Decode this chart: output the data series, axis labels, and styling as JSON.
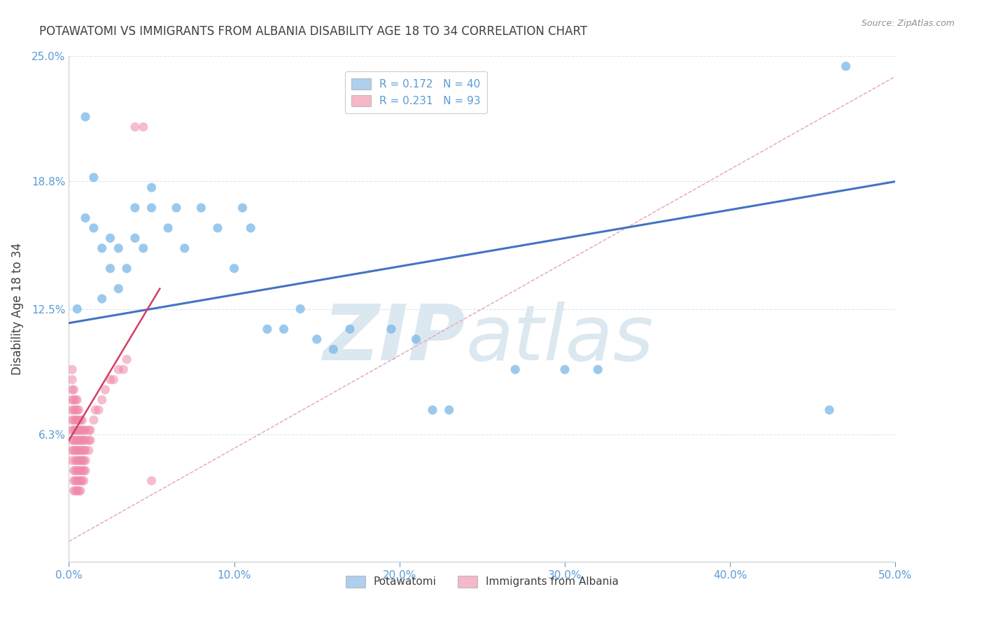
{
  "title": "POTAWATOMI VS IMMIGRANTS FROM ALBANIA DISABILITY AGE 18 TO 34 CORRELATION CHART",
  "source": "Source: ZipAtlas.com",
  "ylabel": "Disability Age 18 to 34",
  "xlim": [
    0,
    0.5
  ],
  "ylim": [
    0,
    0.25
  ],
  "xticks": [
    0.0,
    0.1,
    0.2,
    0.3,
    0.4,
    0.5
  ],
  "xticklabels": [
    "0.0%",
    "10.0%",
    "20.0%",
    "30.0%",
    "40.0%",
    "50.0%"
  ],
  "yticks": [
    0.0,
    0.063,
    0.125,
    0.188,
    0.25
  ],
  "yticklabels": [
    "",
    "6.3%",
    "12.5%",
    "18.8%",
    "25.0%"
  ],
  "legend_entries": [
    {
      "label": "R = 0.172   N = 40",
      "color": "#aecfee"
    },
    {
      "label": "R = 0.231   N = 93",
      "color": "#f5b8c8"
    }
  ],
  "bottom_legend": [
    {
      "label": "Potawatomi",
      "color": "#aecfee"
    },
    {
      "label": "Immigrants from Albania",
      "color": "#f5b8c8"
    }
  ],
  "blue_scatter": {
    "x": [
      0.005,
      0.01,
      0.01,
      0.015,
      0.015,
      0.02,
      0.02,
      0.025,
      0.025,
      0.03,
      0.03,
      0.035,
      0.04,
      0.04,
      0.045,
      0.05,
      0.05,
      0.06,
      0.065,
      0.07,
      0.08,
      0.09,
      0.1,
      0.105,
      0.11,
      0.12,
      0.13,
      0.14,
      0.15,
      0.16,
      0.17,
      0.195,
      0.21,
      0.22,
      0.23,
      0.27,
      0.3,
      0.32,
      0.46,
      0.47
    ],
    "y": [
      0.125,
      0.22,
      0.17,
      0.19,
      0.165,
      0.155,
      0.13,
      0.16,
      0.145,
      0.155,
      0.135,
      0.145,
      0.16,
      0.175,
      0.155,
      0.175,
      0.185,
      0.165,
      0.175,
      0.155,
      0.175,
      0.165,
      0.145,
      0.175,
      0.165,
      0.115,
      0.115,
      0.125,
      0.11,
      0.105,
      0.115,
      0.115,
      0.11,
      0.075,
      0.075,
      0.095,
      0.095,
      0.095,
      0.075,
      0.245
    ],
    "color": "#7ab8e8",
    "edgecolor": "#7ab8e8",
    "alpha": 0.75,
    "size": 90
  },
  "pink_scatter": {
    "x": [
      0.002,
      0.002,
      0.002,
      0.002,
      0.002,
      0.002,
      0.002,
      0.002,
      0.002,
      0.002,
      0.003,
      0.003,
      0.003,
      0.003,
      0.003,
      0.003,
      0.003,
      0.003,
      0.003,
      0.003,
      0.004,
      0.004,
      0.004,
      0.004,
      0.004,
      0.004,
      0.004,
      0.004,
      0.004,
      0.004,
      0.005,
      0.005,
      0.005,
      0.005,
      0.005,
      0.005,
      0.005,
      0.005,
      0.005,
      0.005,
      0.006,
      0.006,
      0.006,
      0.006,
      0.006,
      0.006,
      0.006,
      0.006,
      0.006,
      0.007,
      0.007,
      0.007,
      0.007,
      0.007,
      0.007,
      0.007,
      0.007,
      0.008,
      0.008,
      0.008,
      0.008,
      0.008,
      0.008,
      0.008,
      0.009,
      0.009,
      0.009,
      0.009,
      0.009,
      0.009,
      0.01,
      0.01,
      0.01,
      0.01,
      0.01,
      0.012,
      0.012,
      0.012,
      0.013,
      0.013,
      0.015,
      0.016,
      0.018,
      0.02,
      0.022,
      0.025,
      0.027,
      0.03,
      0.033,
      0.035,
      0.04,
      0.045,
      0.05
    ],
    "y": [
      0.055,
      0.06,
      0.065,
      0.07,
      0.075,
      0.08,
      0.085,
      0.09,
      0.095,
      0.05,
      0.055,
      0.06,
      0.065,
      0.07,
      0.075,
      0.08,
      0.085,
      0.045,
      0.04,
      0.035,
      0.055,
      0.06,
      0.065,
      0.07,
      0.075,
      0.08,
      0.05,
      0.045,
      0.04,
      0.035,
      0.055,
      0.06,
      0.065,
      0.07,
      0.075,
      0.08,
      0.05,
      0.045,
      0.04,
      0.035,
      0.055,
      0.06,
      0.065,
      0.07,
      0.075,
      0.05,
      0.045,
      0.04,
      0.035,
      0.055,
      0.06,
      0.065,
      0.07,
      0.05,
      0.045,
      0.04,
      0.035,
      0.055,
      0.06,
      0.065,
      0.07,
      0.05,
      0.045,
      0.04,
      0.055,
      0.06,
      0.065,
      0.05,
      0.045,
      0.04,
      0.055,
      0.06,
      0.065,
      0.05,
      0.045,
      0.06,
      0.065,
      0.055,
      0.06,
      0.065,
      0.07,
      0.075,
      0.075,
      0.08,
      0.085,
      0.09,
      0.09,
      0.095,
      0.095,
      0.1,
      0.215,
      0.215,
      0.04
    ],
    "color": "#f088a8",
    "edgecolor": "#f088a8",
    "alpha": 0.55,
    "size": 90
  },
  "blue_trend": {
    "x": [
      0.0,
      0.5
    ],
    "y": [
      0.118,
      0.188
    ],
    "color": "#4472c4",
    "linewidth": 2.2
  },
  "pink_trend": {
    "x": [
      0.0,
      0.055
    ],
    "y": [
      0.06,
      0.135
    ],
    "color": "#d04060",
    "linewidth": 1.8
  },
  "pink_dash_trend": {
    "x": [
      0.0,
      0.5
    ],
    "y": [
      0.01,
      0.24
    ],
    "color": "#e8a0b8",
    "linewidth": 1.0,
    "linestyle": "--"
  },
  "watermark_color": "#dce8f0",
  "title_color": "#404040",
  "axis_color": "#5b9bd5",
  "tick_color": "#5b9bd5",
  "grid_color": "#d8e4f0",
  "background_color": "#ffffff"
}
